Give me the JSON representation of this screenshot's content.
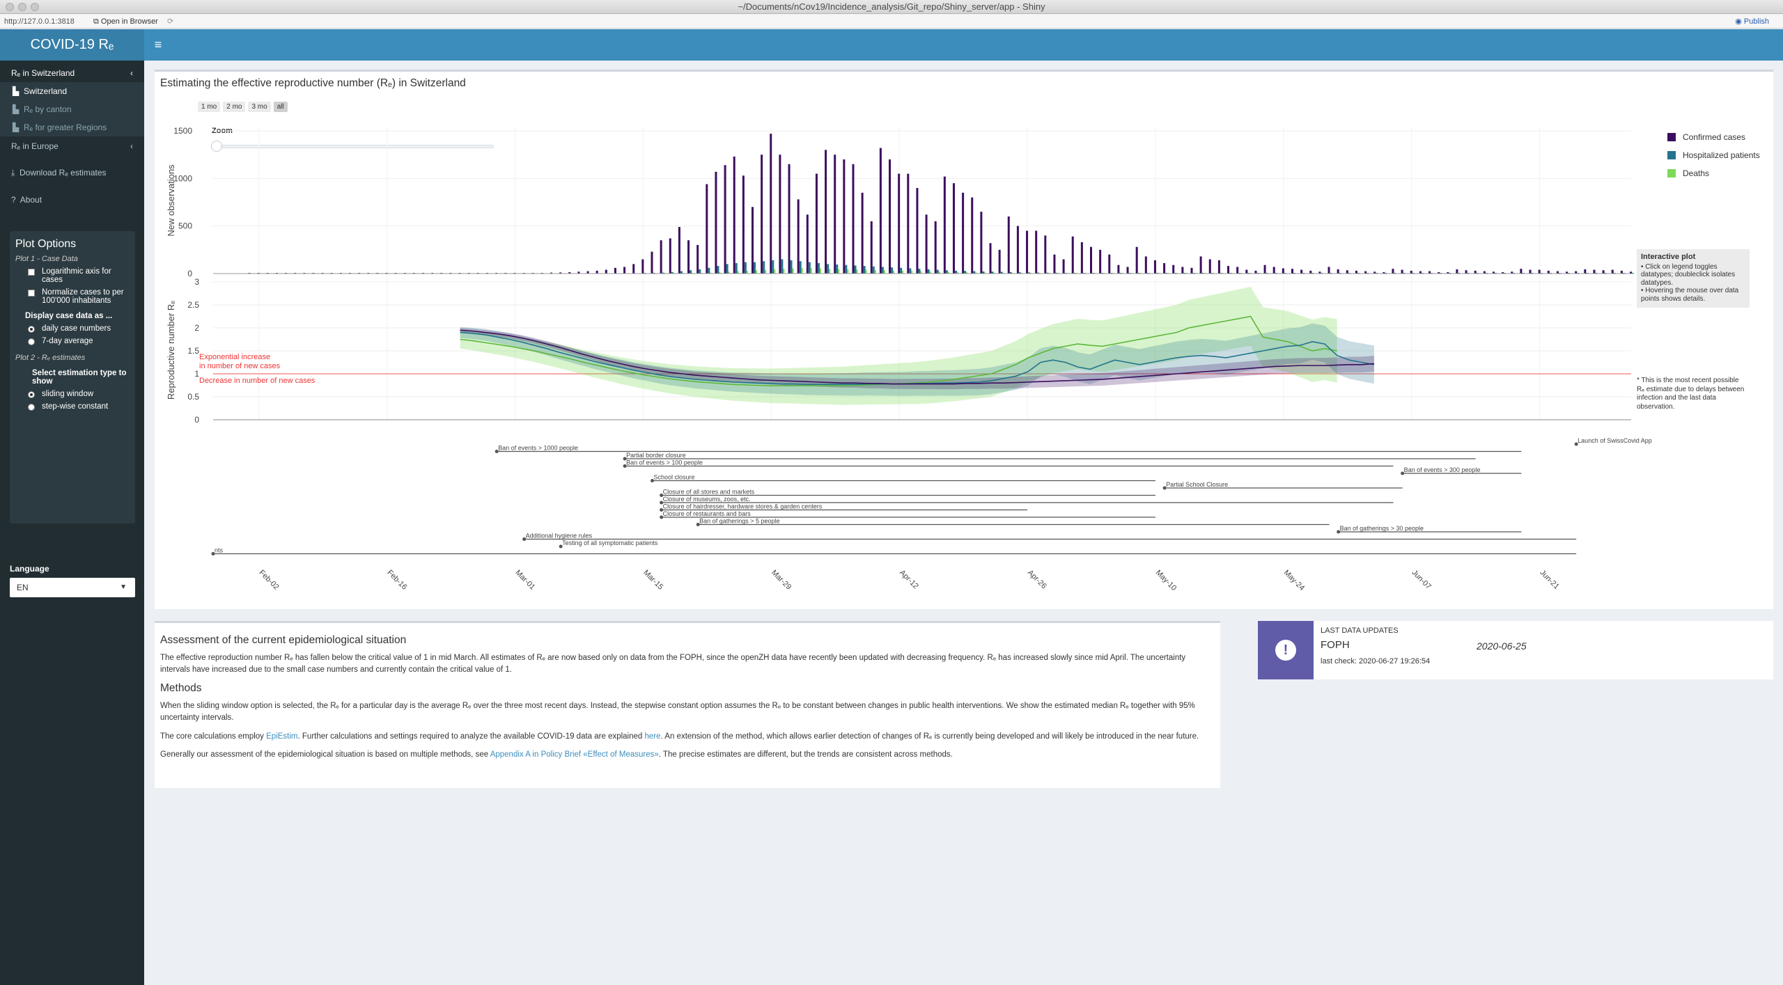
{
  "window": {
    "title": "~/Documents/nCov19/Incidence_analysis/Git_repo/Shiny_server/app - Shiny",
    "url": "http://127.0.0.1:3818",
    "open_in_browser": "Open in Browser",
    "publish": "Publish"
  },
  "app": {
    "logo": "COVID-19 Rₑ",
    "hamburger": "≡"
  },
  "sidebar": {
    "section1": "Rₑ in Switzerland",
    "section1_items": [
      "Switzerland",
      "Rₑ by canton",
      "Rₑ for greater Regions"
    ],
    "section2": "Rₑ in Europe",
    "download": "Download Rₑ estimates",
    "about": "About",
    "plot_options": {
      "title": "Plot Options",
      "plot1": "Plot 1 - Case Data",
      "log_axis": "Logarithmic axis for cases",
      "normalize": "Normalize cases to per 100'000 inhabitants",
      "display_head": "Display case data as ...",
      "display_options": [
        "daily case numbers",
        "7-day average"
      ],
      "plot2": "Plot 2 - Rₑ estimates",
      "estimation_head": "Select estimation type to show",
      "estimation_options": [
        "sliding window",
        "step-wise constant"
      ]
    },
    "language_label": "Language",
    "language_value": "EN"
  },
  "plot": {
    "title": "Estimating the effective reproductive number (Rₑ) in Switzerland",
    "range_buttons": [
      "1 mo",
      "2 mo",
      "3 mo",
      "all"
    ],
    "zoom_label": "Zoom",
    "interactive_title": "Interactive plot",
    "interactive_lines": [
      "• Click on legend toggles datatypes; doubleclick isolates datatypes.",
      "• Hovering the mouse over data points shows details."
    ],
    "side_note": "* This is the most recent possible Rₑ estimate due to delays between infection and the last data observation."
  },
  "chart_data": {
    "type": "bar",
    "ylabel_top": "New observations",
    "ylabel_bottom": "Reproductive number Rₑ",
    "y_top_ticks": [
      "0",
      "500",
      "1000",
      "1500"
    ],
    "y_bottom_ticks": [
      "0",
      "0.5",
      "1",
      "1.5",
      "2",
      "2.5",
      "3"
    ],
    "x_ticks": [
      "Feb-02",
      "Feb-16",
      "Mar-01",
      "Mar-15",
      "Mar-29",
      "Apr-12",
      "Apr-26",
      "May-10",
      "May-24",
      "Jun-07",
      "Jun-21"
    ],
    "legend": [
      {
        "name": "Confirmed cases",
        "color": "#3b0f5e"
      },
      {
        "name": "Hospitalized patients",
        "color": "#23748c"
      },
      {
        "name": "Deaths",
        "color": "#7ed957"
      }
    ],
    "annotations": [
      "Exponential increase",
      "in number of new cases",
      "Decrease in number of new cases"
    ],
    "confirmed": [
      0,
      0,
      0,
      0,
      0,
      0,
      0,
      0,
      0,
      0,
      0,
      0,
      0,
      0,
      0,
      0,
      0,
      0,
      0,
      0,
      0,
      0,
      0,
      0,
      0,
      0,
      0,
      0,
      0,
      1,
      2,
      3,
      6,
      10,
      12,
      15,
      20,
      25,
      30,
      40,
      60,
      70,
      100,
      150,
      230,
      350,
      370,
      490,
      350,
      300,
      940,
      1070,
      1140,
      1230,
      1030,
      700,
      1250,
      1470,
      1250,
      1150,
      780,
      620,
      1050,
      1300,
      1250,
      1200,
      1150,
      850,
      550,
      1320,
      1200,
      1050,
      1050,
      900,
      620,
      550,
      1020,
      950,
      850,
      800,
      650,
      320,
      250,
      600,
      500,
      450,
      450,
      400,
      200,
      150,
      390,
      330,
      280,
      250,
      200,
      90,
      70,
      280,
      180,
      140,
      110,
      90,
      70,
      60,
      180,
      150,
      140,
      80,
      70,
      40,
      30,
      90,
      70,
      55,
      50,
      40,
      30,
      20,
      70,
      45,
      35,
      30,
      25,
      20,
      15,
      50,
      40,
      30,
      25,
      25,
      15,
      15,
      45,
      35,
      30,
      25,
      20,
      15,
      20,
      50,
      40,
      40,
      30,
      25,
      20,
      25,
      45,
      40,
      35,
      40,
      30,
      20,
      30,
      50,
      45,
      50,
      60,
      50,
      30,
      35,
      70,
      75
    ],
    "hospitalized": [
      0,
      0,
      0,
      0,
      0,
      0,
      0,
      0,
      0,
      0,
      0,
      0,
      0,
      0,
      0,
      0,
      0,
      0,
      0,
      0,
      0,
      0,
      0,
      0,
      0,
      0,
      0,
      0,
      0,
      0,
      0,
      0,
      0,
      0,
      0,
      0,
      0,
      0,
      0,
      0,
      0,
      0,
      0,
      5,
      8,
      10,
      15,
      25,
      35,
      45,
      60,
      80,
      100,
      110,
      120,
      120,
      130,
      140,
      150,
      140,
      130,
      120,
      110,
      100,
      95,
      90,
      85,
      80,
      75,
      70,
      65,
      60,
      55,
      50,
      45,
      40,
      35,
      30,
      28,
      25,
      22,
      20,
      18,
      15,
      13,
      12,
      10,
      9,
      8,
      7,
      6,
      5,
      5,
      4,
      4,
      3,
      3,
      3,
      2,
      2,
      2,
      2,
      2,
      2,
      2,
      1,
      1,
      1,
      1,
      1,
      1,
      1,
      1,
      1,
      1,
      1,
      1,
      1,
      1,
      1,
      1,
      1,
      1,
      1,
      1,
      1,
      1,
      1,
      1,
      1,
      1,
      1,
      1,
      1,
      1,
      1,
      1,
      1,
      1,
      1,
      1,
      1,
      1,
      1,
      1,
      1,
      1,
      1,
      1,
      1,
      1,
      1,
      1,
      1
    ],
    "deaths": [
      0,
      0,
      0,
      0,
      0,
      0,
      0,
      0,
      0,
      0,
      0,
      0,
      0,
      0,
      0,
      0,
      0,
      0,
      0,
      0,
      0,
      0,
      0,
      0,
      0,
      0,
      0,
      0,
      0,
      0,
      0,
      0,
      0,
      0,
      0,
      0,
      0,
      0,
      0,
      0,
      0,
      0,
      0,
      0,
      0,
      1,
      2,
      3,
      5,
      8,
      10,
      15,
      20,
      25,
      30,
      35,
      40,
      45,
      50,
      55,
      60,
      58,
      55,
      50,
      48,
      45,
      42,
      40,
      38,
      35,
      32,
      30,
      28,
      25,
      22,
      20,
      18,
      16,
      14,
      12,
      10,
      9,
      8,
      7,
      6,
      5,
      5,
      4,
      4,
      3,
      3,
      3,
      2,
      2,
      2,
      2,
      1,
      1,
      1,
      1,
      1,
      1,
      1,
      1,
      1,
      1,
      1,
      1,
      1,
      1,
      1,
      0,
      0,
      0,
      0,
      0,
      0,
      0,
      0,
      0,
      0,
      0,
      0,
      0,
      0,
      0,
      0,
      0,
      0,
      0,
      0,
      0,
      0,
      0,
      0,
      0,
      0,
      0,
      0,
      0,
      0,
      0,
      0,
      0,
      0,
      0,
      0,
      0,
      0,
      0
    ],
    "re_x_start": "Feb-24",
    "re_confirmed": [
      1.95,
      1.93,
      1.9,
      1.87,
      1.83,
      1.78,
      1.72,
      1.65,
      1.58,
      1.5,
      1.42,
      1.35,
      1.28,
      1.22,
      1.16,
      1.11,
      1.07,
      1.03,
      1.0,
      0.97,
      0.95,
      0.93,
      0.91,
      0.89,
      0.87,
      0.86,
      0.85,
      0.84,
      0.83,
      0.82,
      0.81,
      0.8,
      0.8,
      0.79,
      0.79,
      0.78,
      0.78,
      0.78,
      0.78,
      0.78,
      0.78,
      0.79,
      0.79,
      0.8,
      0.8,
      0.81,
      0.82,
      0.83,
      0.84,
      0.85,
      0.86,
      0.87,
      0.88,
      0.9,
      0.92,
      0.94,
      0.96,
      0.98,
      1.0,
      1.02,
      1.04,
      1.06,
      1.08,
      1.1,
      1.12,
      1.14,
      1.16,
      1.17,
      1.18,
      1.18,
      1.18,
      1.19,
      1.2,
      1.2,
      1.22
    ],
    "re_hospitalized": [
      1.9,
      1.88,
      1.85,
      1.8,
      1.75,
      1.69,
      1.62,
      1.55,
      1.47,
      1.4,
      1.33,
      1.26,
      1.2,
      1.14,
      1.08,
      1.03,
      0.98,
      0.94,
      0.91,
      0.88,
      0.86,
      0.84,
      0.82,
      0.81,
      0.8,
      0.79,
      0.78,
      0.78,
      0.77,
      0.77,
      0.77,
      0.77,
      0.77,
      0.78,
      0.78,
      0.78,
      0.78,
      0.79,
      0.79,
      0.8,
      0.8,
      0.81,
      0.82,
      0.85,
      0.9,
      0.95,
      1.05,
      1.25,
      1.3,
      1.25,
      1.15,
      1.1,
      1.2,
      1.3,
      1.25,
      1.2,
      1.25,
      1.3,
      1.35,
      1.38,
      1.4,
      1.38,
      1.35,
      1.4,
      1.45,
      1.5,
      1.55,
      1.6,
      1.62,
      1.7,
      1.65,
      1.4,
      1.3,
      1.25,
      1.2
    ],
    "re_deaths": [
      1.75,
      1.72,
      1.68,
      1.64,
      1.6,
      1.55,
      1.5,
      1.44,
      1.38,
      1.32,
      1.25,
      1.19,
      1.13,
      1.07,
      1.02,
      0.97,
      0.93,
      0.89,
      0.86,
      0.83,
      0.81,
      0.79,
      0.77,
      0.76,
      0.75,
      0.74,
      0.74,
      0.74,
      0.74,
      0.74,
      0.74,
      0.74,
      0.75,
      0.76,
      0.77,
      0.78,
      0.79,
      0.8,
      0.82,
      0.85,
      0.88,
      0.92,
      0.96,
      1.0,
      1.1,
      1.2,
      1.35,
      1.45,
      1.55,
      1.6,
      1.65,
      1.62,
      1.6,
      1.65,
      1.7,
      1.75,
      1.8,
      1.85,
      1.9,
      2.0,
      2.05,
      2.1,
      2.15,
      2.2,
      2.25,
      1.8,
      1.75,
      1.7,
      1.6,
      1.5,
      1.55,
      1.5
    ],
    "measures": [
      {
        "label": "Launch of SwissCovid App",
        "start": "Jun-25",
        "end": "Jun-25"
      },
      {
        "label": "Ban of events > 1000 people",
        "start": "Feb-28",
        "end": "Jun-19"
      },
      {
        "label": "Partial border closure",
        "start": "Mar-13",
        "end": "Jun-14"
      },
      {
        "label": "Ban of events > 100 people",
        "start": "Mar-13",
        "end": "Jun-05"
      },
      {
        "label": "Ban of events > 300 people",
        "start": "Jun-06",
        "end": "Jun-19"
      },
      {
        "label": "School closure",
        "start": "Mar-16",
        "end": "May-10"
      },
      {
        "label": "Partial School Closure",
        "start": "May-11",
        "end": "Jun-06"
      },
      {
        "label": "Closure of all stores and markets",
        "start": "Mar-17",
        "end": "May-10"
      },
      {
        "label": "Closure of museums, zoos, etc.",
        "start": "Mar-17",
        "end": "Jun-05"
      },
      {
        "label": "Closure of hairdresser, hardware stores & garden centers",
        "start": "Mar-17",
        "end": "Apr-26"
      },
      {
        "label": "Closure of restaurants and bars",
        "start": "Mar-17",
        "end": "May-10"
      },
      {
        "label": "Ban of gatherings > 5 people",
        "start": "Mar-21",
        "end": "May-29"
      },
      {
        "label": "Ban of gatherings > 30 people",
        "start": "May-30",
        "end": "Jun-19"
      },
      {
        "label": "Additional hygiene rules",
        "start": "Mar-02",
        "end": "Jun-25"
      },
      {
        "label": "Testing of all symptomatic patients",
        "start": "Mar-06",
        "end": "Mar-06"
      },
      {
        "label": "nts",
        "start": "Jan-28",
        "end": "Jun-25"
      }
    ]
  },
  "assessment": {
    "title": "Assessment of the current epidemiological situation",
    "p1": "The effective reproduction number Rₑ has fallen below the critical value of 1 in mid March. All estimates of Rₑ are now based only on data from the FOPH, since the openZH data have recently been updated with decreasing frequency. Rₑ has increased slowly since mid April. The uncertainty intervals have increased due to the small case numbers and currently contain the critical value of 1.",
    "methods_title": "Methods",
    "p2": "When the sliding window option is selected, the Rₑ for a particular day is the average Rₑ over the three most recent days. Instead, the stepwise constant option assumes the Rₑ to be constant between changes in public health interventions. We show the estimated median Rₑ together with 95% uncertainty intervals.",
    "p3_a": "The core calculations employ ",
    "p3_link1": "EpiEstim",
    "p3_b": ". Further calculations and settings required to analyze the available COVID-19 data are explained ",
    "p3_link2": "here",
    "p3_c": ". An extension of the method, which allows earlier detection of changes of Rₑ is currently being developed and will likely be introduced in the near future.",
    "p4_a": "Generally our assessment of the epidemiological situation is based on multiple methods, see ",
    "p4_link": "Appendix A in Policy Brief «Effect of Measures»",
    "p4_b": ". The precise estimates are different, but the trends are consistent across methods."
  },
  "info": {
    "label": "LAST DATA UPDATES",
    "source": "FOPH",
    "date": "2020-06-25",
    "last_check": "last check: 2020-06-27 19:26:54"
  }
}
